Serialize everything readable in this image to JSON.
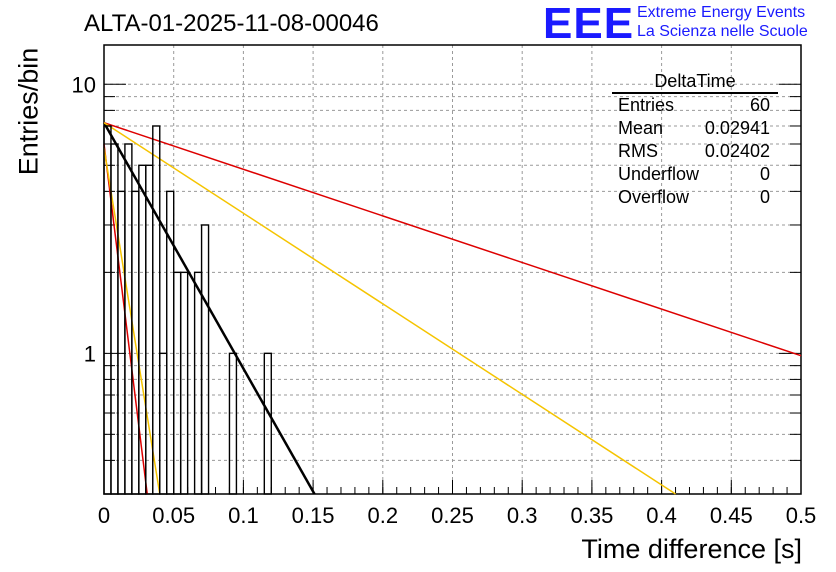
{
  "header": {
    "run_title": "ALTA-01-2025-11-08-00046",
    "logo_text": "EEE",
    "logo_line1": "Extreme Energy Events",
    "logo_line2": "La Scienza nelle Scuole"
  },
  "stats_box": {
    "title": "DeltaTime",
    "rows": [
      {
        "label": "Entries",
        "value": "60"
      },
      {
        "label": "Mean",
        "value": "0.02941"
      },
      {
        "label": "RMS",
        "value": "0.02402"
      },
      {
        "label": "Underflow",
        "value": "0"
      },
      {
        "label": "Overflow",
        "value": "0"
      }
    ]
  },
  "colors": {
    "red": "#dd0000",
    "gold": "#f5c400",
    "black": "#000000",
    "logo_blue": "#1a1aff"
  },
  "chart_data": {
    "type": "histogram",
    "title": "ALTA-01-2025-11-08-00046",
    "xlabel": "Time difference [s]",
    "ylabel": "Entries/bin",
    "xlim": [
      0,
      0.5
    ],
    "ylim": [
      0.3,
      14
    ],
    "yscale": "log",
    "grid": true,
    "x_ticks": [
      "0",
      "0.05",
      "0.1",
      "0.15",
      "0.2",
      "0.25",
      "0.3",
      "0.35",
      "0.4",
      "0.45",
      "0.5"
    ],
    "x_tick_values": [
      0,
      0.05,
      0.1,
      0.15,
      0.2,
      0.25,
      0.3,
      0.35,
      0.4,
      0.45,
      0.5
    ],
    "y_ticks": [
      "1",
      "10"
    ],
    "y_tick_values": [
      1,
      10
    ],
    "bin_width": 0.005,
    "bins": [
      {
        "x0": 0.0,
        "value": 7
      },
      {
        "x0": 0.005,
        "value": 6
      },
      {
        "x0": 0.01,
        "value": 4
      },
      {
        "x0": 0.015,
        "value": 6
      },
      {
        "x0": 0.02,
        "value": 4
      },
      {
        "x0": 0.025,
        "value": 5
      },
      {
        "x0": 0.03,
        "value": 5
      },
      {
        "x0": 0.035,
        "value": 7
      },
      {
        "x0": 0.04,
        "value": 1
      },
      {
        "x0": 0.045,
        "value": 4
      },
      {
        "x0": 0.05,
        "value": 2
      },
      {
        "x0": 0.055,
        "value": 2
      },
      {
        "x0": 0.06,
        "value": 0
      },
      {
        "x0": 0.065,
        "value": 2
      },
      {
        "x0": 0.07,
        "value": 3
      },
      {
        "x0": 0.075,
        "value": 0
      },
      {
        "x0": 0.08,
        "value": 0
      },
      {
        "x0": 0.085,
        "value": 0
      },
      {
        "x0": 0.09,
        "value": 1
      },
      {
        "x0": 0.095,
        "value": 0
      },
      {
        "x0": 0.1,
        "value": 0
      },
      {
        "x0": 0.105,
        "value": 0
      },
      {
        "x0": 0.11,
        "value": 0
      },
      {
        "x0": 0.115,
        "value": 1
      }
    ],
    "fit_lines": [
      {
        "name": "black-fit",
        "color": "#000000",
        "x": [
          0.0,
          0.151
        ],
        "y": [
          7.2,
          0.3
        ],
        "width": 2.5
      },
      {
        "name": "red-fit-slow",
        "color": "#dd0000",
        "x": [
          0.0,
          0.5
        ],
        "y": [
          7.2,
          0.98
        ],
        "width": 1.5
      },
      {
        "name": "gold-fit-slow",
        "color": "#f5c400",
        "x": [
          0.0,
          0.41
        ],
        "y": [
          7.2,
          0.3
        ],
        "width": 1.5
      },
      {
        "name": "red-fit-steep",
        "color": "#dd0000",
        "x": [
          0.0,
          0.031
        ],
        "y": [
          6.0,
          0.3
        ],
        "width": 1.5
      },
      {
        "name": "gold-fit-steep",
        "color": "#f5c400",
        "x": [
          0.0,
          0.04
        ],
        "y": [
          5.8,
          0.3
        ],
        "width": 1.5
      }
    ]
  }
}
